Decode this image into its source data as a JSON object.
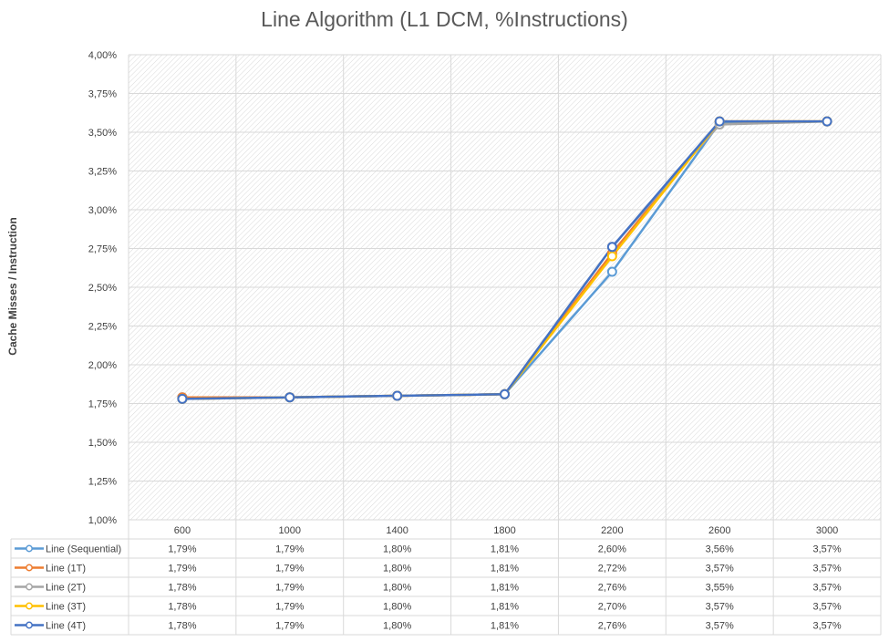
{
  "chart_data": {
    "type": "line",
    "title": "Line Algorithm (L1 DCM, %Instructions)",
    "xlabel": "",
    "ylabel": "Cache Misses / Instruction",
    "categories": [
      "600",
      "1000",
      "1400",
      "1800",
      "2200",
      "2600",
      "3000"
    ],
    "y_ticks": [
      "4,00%",
      "3,75%",
      "3,50%",
      "3,25%",
      "3,00%",
      "2,75%",
      "2,50%",
      "2,25%",
      "2,00%",
      "1,75%",
      "1,50%",
      "1,25%",
      "1,00%"
    ],
    "ylim": [
      1.0,
      4.0
    ],
    "grid": true,
    "legend": "data-table-bottom",
    "series": [
      {
        "name": "Line (Sequential)",
        "color": "#5B9BD5",
        "values": [
          1.79,
          1.79,
          1.8,
          1.81,
          2.6,
          3.56,
          3.57
        ],
        "labels": [
          "1,79%",
          "1,79%",
          "1,80%",
          "1,81%",
          "2,60%",
          "3,56%",
          "3,57%"
        ]
      },
      {
        "name": "Line (1T)",
        "color": "#ED7D31",
        "values": [
          1.79,
          1.79,
          1.8,
          1.81,
          2.72,
          3.57,
          3.57
        ],
        "labels": [
          "1,79%",
          "1,79%",
          "1,80%",
          "1,81%",
          "2,72%",
          "3,57%",
          "3,57%"
        ]
      },
      {
        "name": "Line (2T)",
        "color": "#A5A5A5",
        "values": [
          1.78,
          1.79,
          1.8,
          1.81,
          2.76,
          3.55,
          3.57
        ],
        "labels": [
          "1,78%",
          "1,79%",
          "1,80%",
          "1,81%",
          "2,76%",
          "3,55%",
          "3,57%"
        ]
      },
      {
        "name": "Line (3T)",
        "color": "#FFC000",
        "values": [
          1.78,
          1.79,
          1.8,
          1.81,
          2.7,
          3.57,
          3.57
        ],
        "labels": [
          "1,78%",
          "1,79%",
          "1,80%",
          "1,81%",
          "2,70%",
          "3,57%",
          "3,57%"
        ]
      },
      {
        "name": "Line (4T)",
        "color": "#4472C4",
        "values": [
          1.78,
          1.79,
          1.8,
          1.81,
          2.76,
          3.57,
          3.57
        ],
        "labels": [
          "1,78%",
          "1,79%",
          "1,80%",
          "1,81%",
          "2,76%",
          "3,57%",
          "3,57%"
        ]
      }
    ]
  }
}
